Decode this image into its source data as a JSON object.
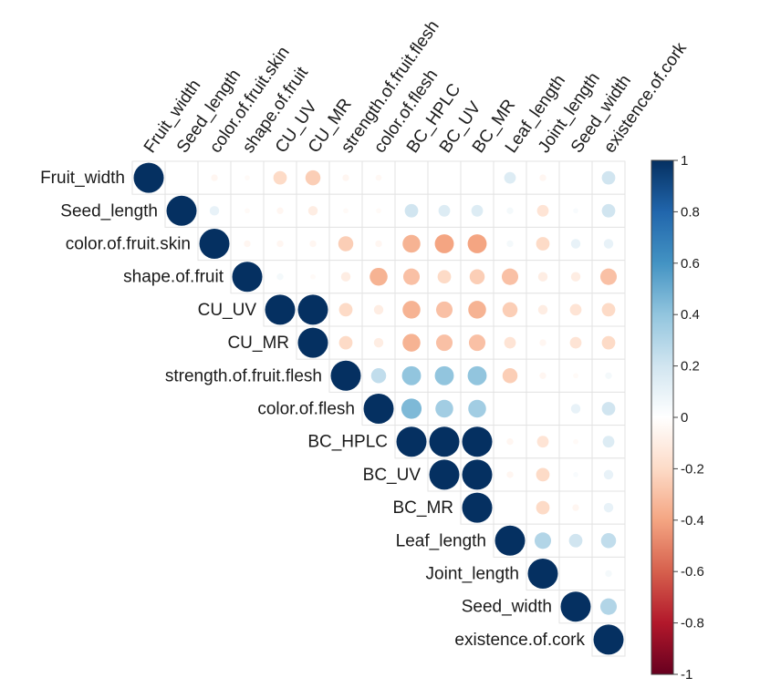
{
  "chart_data": {
    "type": "correlation-matrix-upper",
    "variables": [
      "Fruit_width",
      "Seed_length",
      "color.of.fruit.skin",
      "shape.of.fruit",
      "CU_UV",
      "CU_MR",
      "strength.of.fruit.flesh",
      "color.of.flesh",
      "BC_HPLC",
      "BC_UV",
      "BC_MR",
      "Leaf_length",
      "Joint_length",
      "Seed_width",
      "existence.of.cork"
    ],
    "matrix": [
      [
        1,
        0,
        -0.05,
        -0.03,
        -0.2,
        -0.25,
        -0.05,
        -0.04,
        0,
        0,
        0,
        0.15,
        -0.05,
        0,
        0.2
      ],
      [
        null,
        1,
        0.1,
        -0.03,
        -0.05,
        -0.1,
        -0.03,
        -0.03,
        0.2,
        0.15,
        0.15,
        0.05,
        -0.15,
        0.03,
        0.2
      ],
      [
        null,
        null,
        1,
        -0.05,
        -0.05,
        -0.05,
        -0.25,
        -0.05,
        -0.35,
        -0.4,
        -0.4,
        0.05,
        -0.2,
        0.1,
        0.1
      ],
      [
        null,
        null,
        null,
        1,
        0.05,
        -0.03,
        -0.1,
        -0.35,
        -0.3,
        -0.2,
        -0.25,
        -0.3,
        -0.1,
        -0.1,
        -0.3
      ],
      [
        null,
        null,
        null,
        null,
        1,
        1,
        -0.2,
        -0.1,
        -0.35,
        -0.3,
        -0.35,
        -0.25,
        -0.1,
        -0.15,
        -0.2
      ],
      [
        null,
        null,
        null,
        null,
        null,
        1,
        -0.2,
        -0.1,
        -0.35,
        -0.3,
        -0.3,
        -0.15,
        -0.05,
        -0.15,
        -0.2
      ],
      [
        null,
        null,
        null,
        null,
        null,
        null,
        1,
        0.25,
        0.4,
        0.4,
        0.4,
        -0.25,
        -0.05,
        -0.03,
        0.05
      ],
      [
        null,
        null,
        null,
        null,
        null,
        null,
        null,
        1,
        0.45,
        0.35,
        0.35,
        0,
        0,
        0.1,
        0.2
      ],
      [
        null,
        null,
        null,
        null,
        null,
        null,
        null,
        null,
        1,
        1,
        1,
        -0.05,
        -0.15,
        -0.03,
        0.15
      ],
      [
        null,
        null,
        null,
        null,
        null,
        null,
        null,
        null,
        null,
        1,
        1,
        -0.05,
        -0.2,
        0.03,
        0.1
      ],
      [
        null,
        null,
        null,
        null,
        null,
        null,
        null,
        null,
        null,
        null,
        1,
        0,
        -0.2,
        -0.05,
        0.1
      ],
      [
        null,
        null,
        null,
        null,
        null,
        null,
        null,
        null,
        null,
        null,
        null,
        1,
        0.3,
        0.2,
        0.25
      ],
      [
        null,
        null,
        null,
        null,
        null,
        null,
        null,
        null,
        null,
        null,
        null,
        null,
        1,
        0,
        0.05
      ],
      [
        null,
        null,
        null,
        null,
        null,
        null,
        null,
        null,
        null,
        null,
        null,
        null,
        null,
        1,
        0.3
      ],
      [
        null,
        null,
        null,
        null,
        null,
        null,
        null,
        null,
        null,
        null,
        null,
        null,
        null,
        null,
        1
      ]
    ],
    "colorbar": {
      "min": -1,
      "max": 1,
      "ticks": [
        1,
        0.8,
        0.6,
        0.4,
        0.2,
        0,
        -0.2,
        -0.4,
        -0.6,
        -0.8,
        -1
      ],
      "tick_labels": [
        "1",
        "0.8",
        "0.6",
        "0.4",
        "0.2",
        "0",
        "-0.2",
        "-0.4",
        "-0.6",
        "-0.8",
        "-1"
      ],
      "colors": [
        "#67001f",
        "#b2182b",
        "#d6604d",
        "#f4a582",
        "#fddbc7",
        "#ffffff",
        "#d1e5f0",
        "#92c5de",
        "#4393c3",
        "#2166ac",
        "#053061"
      ]
    }
  }
}
